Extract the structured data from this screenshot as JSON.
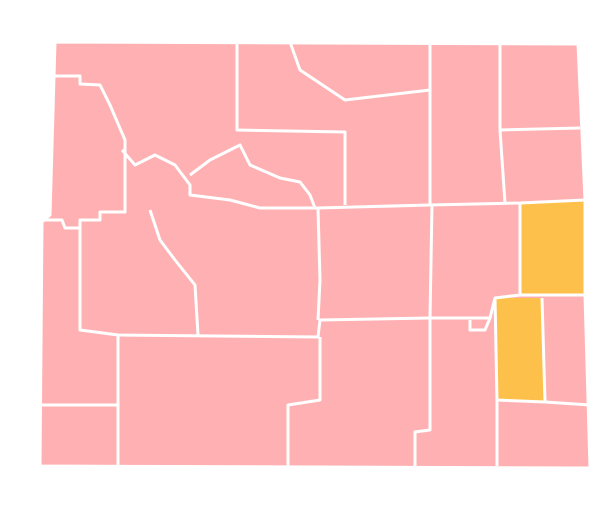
{
  "map": {
    "fill": "#ffb0b2",
    "highlight": "#fdc04a",
    "border": "#ffffff"
  }
}
